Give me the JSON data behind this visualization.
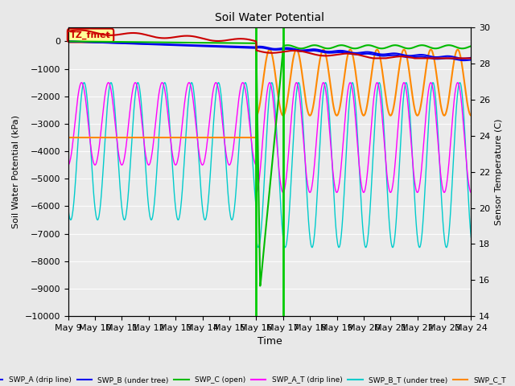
{
  "title": "Soil Water Potential",
  "ylabel_left": "Soil Water Potential (kPa)",
  "ylabel_right": "Sensor Temperature (C)",
  "xlabel": "Time",
  "ylim_left": [
    -10000,
    500
  ],
  "ylim_right": [
    14,
    30
  ],
  "annotation_label": "TZ_fmet",
  "annotation_color": "#cc0000",
  "annotation_bg": "#ffff99",
  "fig_bg": "#e8e8e8",
  "plot_bg": "#ebebeb",
  "colors": {
    "SWP_A": "#0000ee",
    "SWP_B": "#0000ee",
    "SWP_C": "#00bb00",
    "SWP_A_T": "#ff00ff",
    "SWP_B_T": "#00cccc",
    "SWP_C_T": "#ff8800",
    "TZ_temp": "#cc0000"
  },
  "irrig1_day": 7.0,
  "irrig2_day": 8.0,
  "n_pts": 1000,
  "n_days": 15,
  "date_labels": [
    "May 9",
    "May 10",
    "May 11",
    "May 12",
    "May 13",
    "May 14",
    "May 15",
    "May 16",
    "May 17",
    "May 18",
    "May 19",
    "May 20",
    "May 21",
    "May 22",
    "May 23",
    "May 24"
  ],
  "yticks_left": [
    0,
    -1000,
    -2000,
    -3000,
    -4000,
    -5000,
    -6000,
    -7000,
    -8000,
    -9000,
    -10000
  ],
  "yticks_right": [
    14,
    16,
    18,
    20,
    22,
    24,
    26,
    28,
    30
  ]
}
